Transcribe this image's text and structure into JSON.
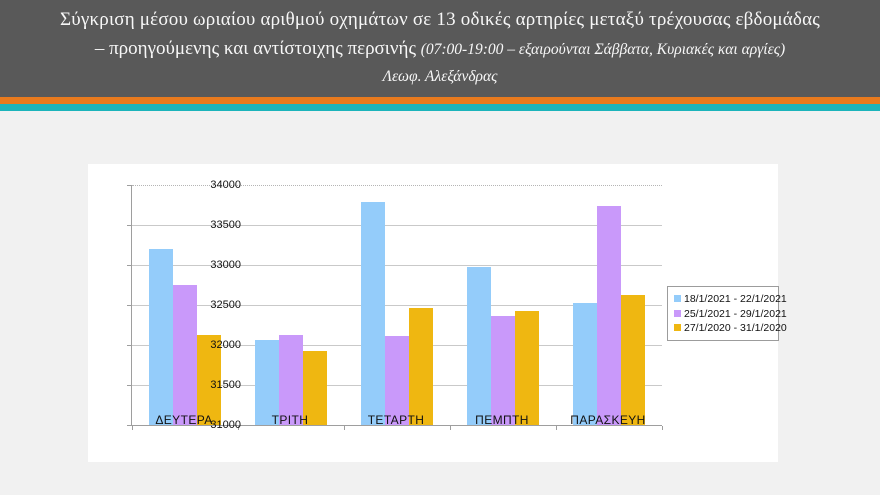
{
  "header": {
    "title_line1": "Σύγκριση μέσου ωριαίου αριθμού οχημάτων σε 13 οδικές αρτηρίες μεταξύ τρέχουσας εβδομάδας",
    "title_line2_main": "– προηγούμενης και αντίστοιχης περσινής ",
    "title_line2_paren": "(07:00-19:00 – εξαιρούνται Σάββατα, Κυριακές και αργίες)",
    "title_line3": "Λεωφ. Αλεξάνδρας",
    "bg_color": "#595959",
    "stripe_orange_color": "#e87a1e",
    "stripe_teal_color": "#1cb4bb"
  },
  "chart_data": {
    "type": "bar",
    "title": "",
    "xlabel": "",
    "ylabel": "",
    "categories": [
      "ΔΕΥΤΕΡΑ",
      "ΤΡΙΤΗ",
      "ΤΕΤΑΡΤΗ",
      "ΠΕΜΠΤΗ",
      "ΠΑΡΑΣΚΕΥΗ"
    ],
    "series": [
      {
        "name": "18/1/2021 - 22/1/2021",
        "color": "#94ccfa",
        "values": [
          33200,
          32060,
          33790,
          32980,
          32520
        ]
      },
      {
        "name": "25/1/2021 - 29/1/2021",
        "color": "#c999fa",
        "values": [
          32750,
          32120,
          32110,
          32360,
          33740
        ]
      },
      {
        "name": "27/1/2020 - 31/1/2020",
        "color": "#efb711",
        "values": [
          32120,
          31930,
          32460,
          32430,
          32630
        ]
      }
    ],
    "ylim": [
      31000,
      34000
    ],
    "yticks": [
      31000,
      31500,
      32000,
      32500,
      33000,
      33500,
      34000
    ],
    "grid": true,
    "top_gridline_style": "dotted",
    "legend_position": "right-inside"
  }
}
